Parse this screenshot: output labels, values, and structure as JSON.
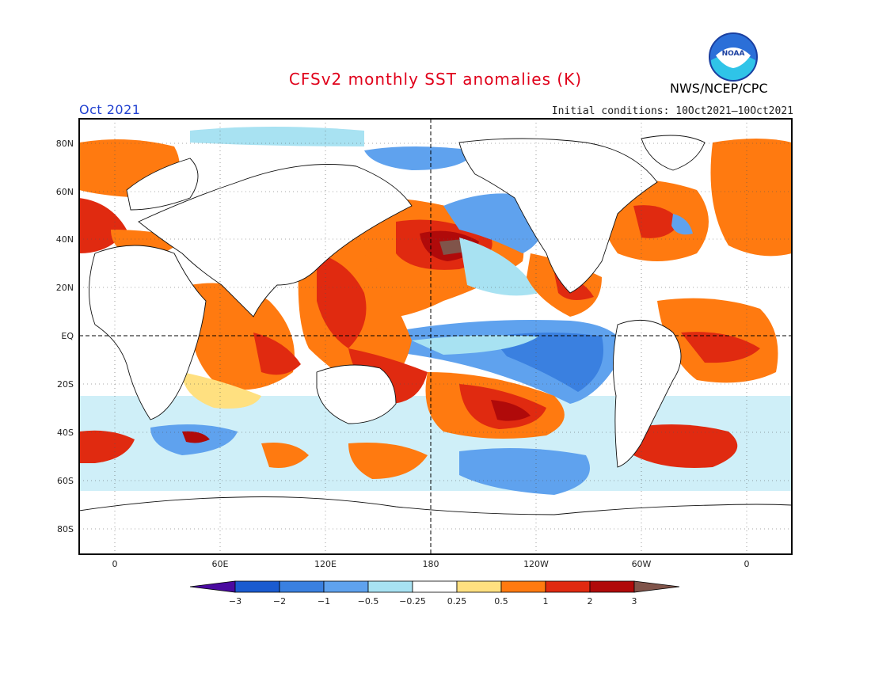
{
  "title": "CFSv2 monthly SST anomalies (K)",
  "date_label": "Oct 2021",
  "initial_conditions": "Initial conditions: 10Oct2021–10Oct2021",
  "agency": "NWS/NCEP/CPC",
  "logo_text": "NOAA",
  "colors": {
    "title": "#e0001a",
    "date": "#2040d0",
    "neg3": "#4a0aa0",
    "neg2": "#1a5bd0",
    "neg1": "#3a80e0",
    "neg05": "#5fa2ee",
    "neg025": "#a8e2f2",
    "neutral": "#ffffff",
    "pos025": "#ffe080",
    "pos05": "#ff7a10",
    "pos1": "#e02a10",
    "pos2": "#b00a0a",
    "pos3": "#80544a"
  },
  "map": {
    "lat_labels": [
      "80N",
      "60N",
      "40N",
      "20N",
      "EQ",
      "20S",
      "40S",
      "60S",
      "80S"
    ],
    "lon_labels": [
      "0",
      "60E",
      "120E",
      "180",
      "120W",
      "60W",
      "0"
    ]
  },
  "colorbar": {
    "tick_labels": [
      "−3",
      "−2",
      "−1",
      "−0.5",
      "−0.25",
      "0.25",
      "0.5",
      "1",
      "2",
      "3"
    ],
    "bins": [
      {
        "label": "< -3",
        "color": "#4a0aa0"
      },
      {
        "label": "-3 to -2",
        "color": "#1a5bd0"
      },
      {
        "label": "-2 to -1",
        "color": "#3a80e0"
      },
      {
        "label": "-1 to -0.5",
        "color": "#5fa2ee"
      },
      {
        "label": "-0.5 to -0.25",
        "color": "#a8e2f2"
      },
      {
        "label": "-0.25 to 0.25",
        "color": "#ffffff"
      },
      {
        "label": "0.25 to 0.5",
        "color": "#ffe080"
      },
      {
        "label": "0.5 to 1",
        "color": "#ff7a10"
      },
      {
        "label": "1 to 2",
        "color": "#e02a10"
      },
      {
        "label": "2 to 3",
        "color": "#b00a0a"
      },
      {
        "label": "> 3",
        "color": "#80544a"
      }
    ]
  }
}
